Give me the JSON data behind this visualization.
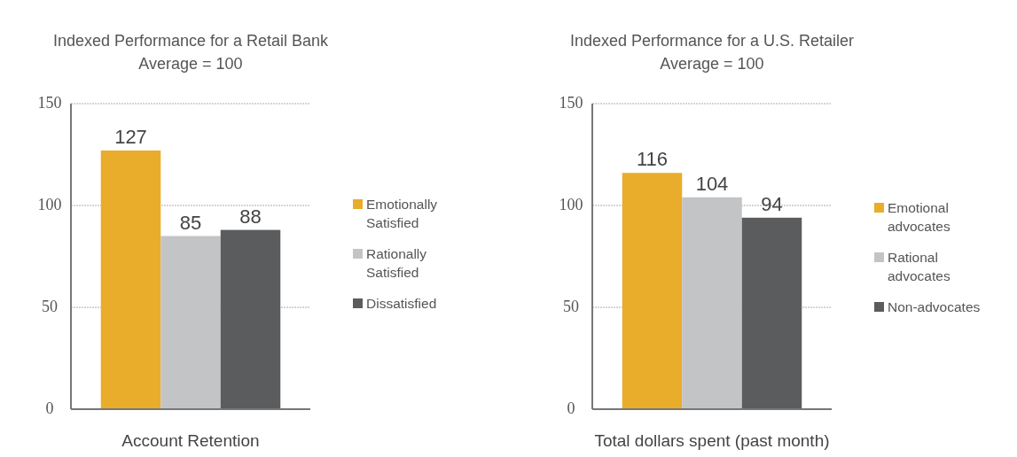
{
  "chart_data": [
    {
      "type": "bar",
      "title": "Indexed Performance for a Retail Bank",
      "subtitle": "Average = 100",
      "xlabel": "Account Retention",
      "categories": [
        null
      ],
      "series": [
        {
          "name": "Emotionally Satisfied",
          "color": "#e9ac2b",
          "values": [
            127
          ]
        },
        {
          "name": "Rationally Satisfied",
          "color": "#c3c4c6",
          "values": [
            85
          ]
        },
        {
          "name": "Dissatisfied",
          "color": "#5b5c5e",
          "values": [
            88
          ]
        }
      ],
      "ylim": [
        0,
        150
      ],
      "yticks": [
        0,
        50,
        100,
        150
      ],
      "grid": "y",
      "legend": "right",
      "data_labels": true
    },
    {
      "type": "bar",
      "title": "Indexed Performance for a U.S. Retailer",
      "subtitle": "Average = 100",
      "xlabel": "Total dollars spent (past month)",
      "categories": [
        null
      ],
      "series": [
        {
          "name": "Emotional advocates",
          "color": "#e9ac2b",
          "values": [
            116
          ]
        },
        {
          "name": "Rational advocates",
          "color": "#c3c4c6",
          "values": [
            104
          ]
        },
        {
          "name": "Non-advocates",
          "color": "#5b5c5e",
          "values": [
            94
          ]
        }
      ],
      "ylim": [
        0,
        150
      ],
      "yticks": [
        0,
        50,
        100,
        150
      ],
      "grid": "y",
      "legend": "right",
      "data_labels": true
    }
  ]
}
